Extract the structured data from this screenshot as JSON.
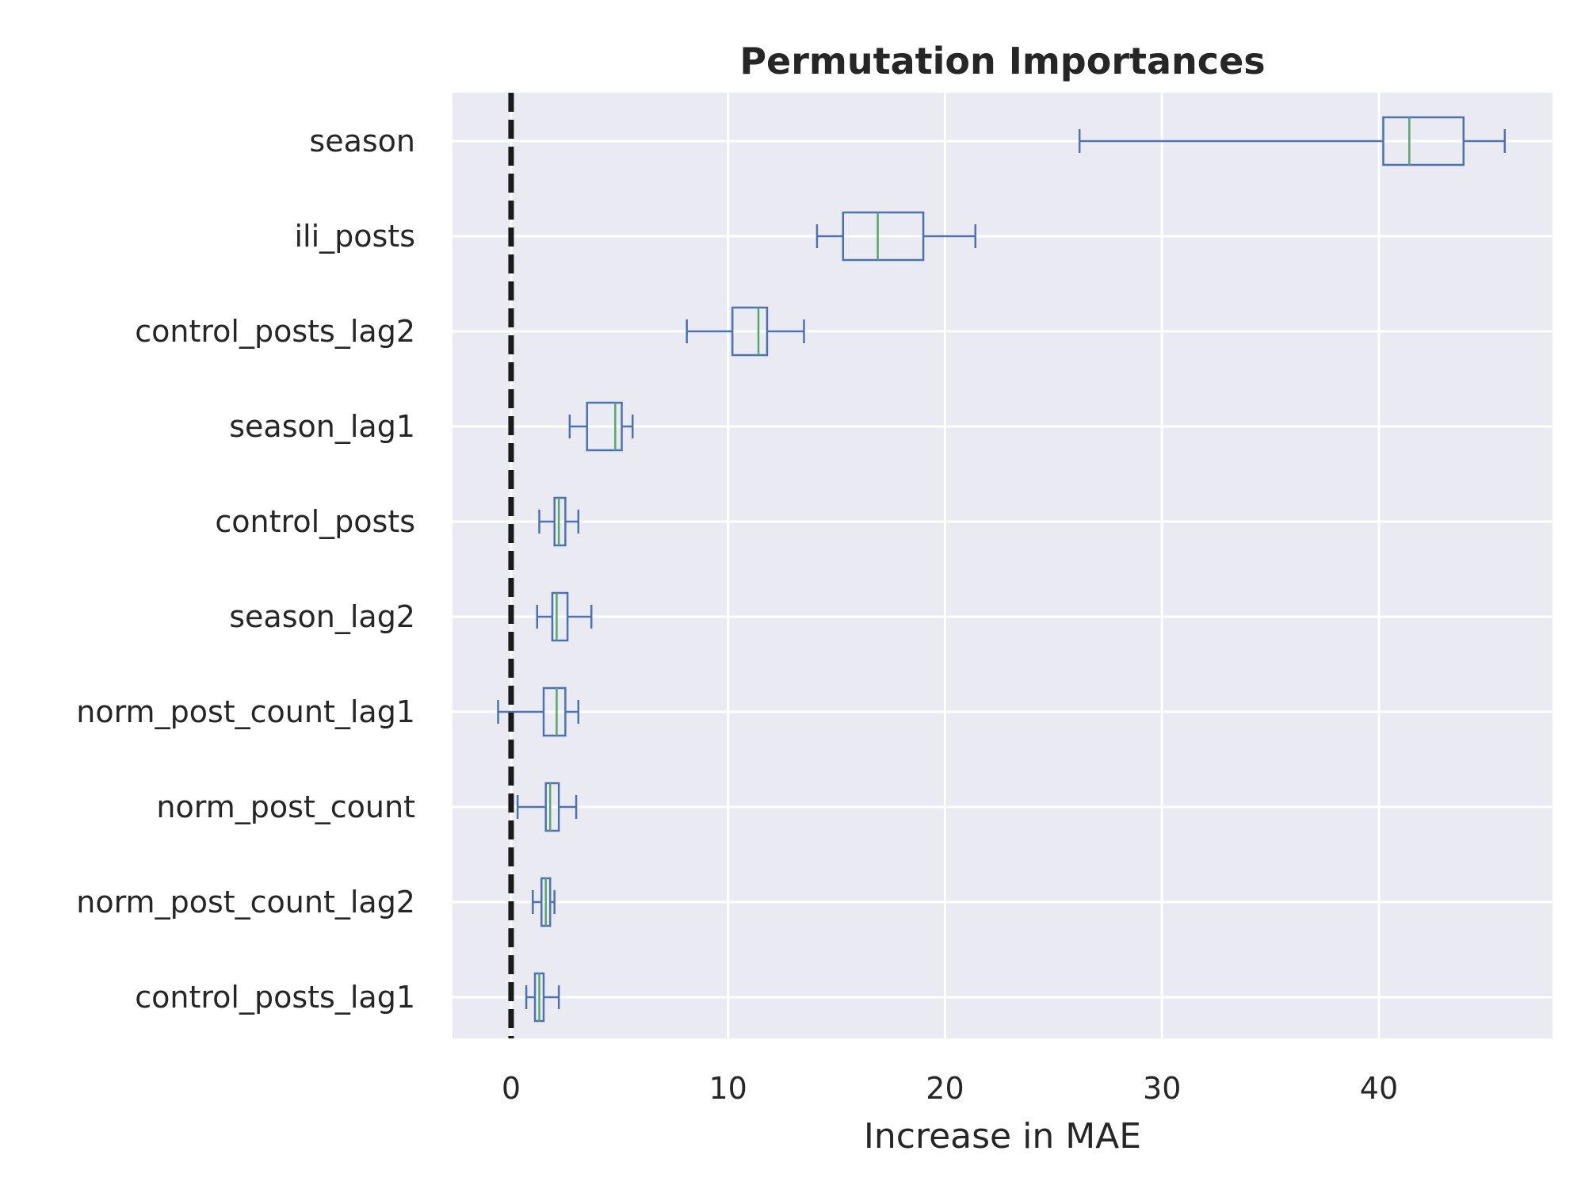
{
  "chart_data": {
    "type": "boxplot",
    "orientation": "horizontal",
    "title": "Permutation Importances",
    "xlabel": "Increase in MAE",
    "ylabel": "",
    "xlim": [
      -2.7,
      48
    ],
    "xticks": [
      0,
      10,
      20,
      30,
      40
    ],
    "grid": true,
    "reference_line": {
      "x": 0,
      "style": "dashed",
      "color": "#1a1a1a"
    },
    "colors": {
      "background": "#eaeaf2",
      "grid": "#ffffff",
      "box": "#4c72b0",
      "median": "#55a868"
    },
    "categories": [
      "season",
      "ili_posts",
      "control_posts_lag2",
      "season_lag1",
      "control_posts",
      "season_lag2",
      "norm_post_count_lag1",
      "norm_post_count",
      "norm_post_count_lag2",
      "control_posts_lag1"
    ],
    "boxes": [
      {
        "label": "season",
        "whislo": 26.2,
        "q1": 40.2,
        "med": 41.4,
        "q3": 43.9,
        "whishi": 45.8
      },
      {
        "label": "ili_posts",
        "whislo": 14.1,
        "q1": 15.3,
        "med": 16.9,
        "q3": 19.0,
        "whishi": 21.4
      },
      {
        "label": "control_posts_lag2",
        "whislo": 8.1,
        "q1": 10.2,
        "med": 11.4,
        "q3": 11.8,
        "whishi": 13.5
      },
      {
        "label": "season_lag1",
        "whislo": 2.7,
        "q1": 3.5,
        "med": 4.8,
        "q3": 5.1,
        "whishi": 5.6
      },
      {
        "label": "control_posts",
        "whislo": 1.3,
        "q1": 2.0,
        "med": 2.2,
        "q3": 2.5,
        "whishi": 3.1
      },
      {
        "label": "season_lag2",
        "whislo": 1.2,
        "q1": 1.9,
        "med": 2.1,
        "q3": 2.6,
        "whishi": 3.7
      },
      {
        "label": "norm_post_count_lag1",
        "whislo": -0.6,
        "q1": 1.5,
        "med": 2.1,
        "q3": 2.5,
        "whishi": 3.1
      },
      {
        "label": "norm_post_count",
        "whislo": 0.3,
        "q1": 1.6,
        "med": 1.8,
        "q3": 2.2,
        "whishi": 3.0
      },
      {
        "label": "norm_post_count_lag2",
        "whislo": 1.0,
        "q1": 1.4,
        "med": 1.6,
        "q3": 1.8,
        "whishi": 2.0
      },
      {
        "label": "control_posts_lag1",
        "whislo": 0.7,
        "q1": 1.1,
        "med": 1.3,
        "q3": 1.5,
        "whishi": 2.2
      }
    ]
  }
}
